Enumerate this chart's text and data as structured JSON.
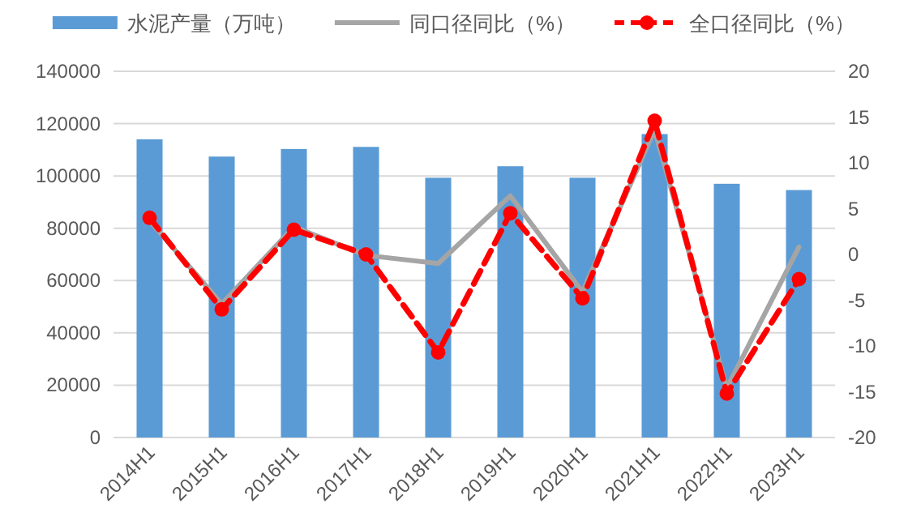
{
  "chart_data": {
    "type": "bar",
    "categories": [
      "2014H1",
      "2015H1",
      "2016H1",
      "2017H1",
      "2018H1",
      "2019H1",
      "2020H1",
      "2021H1",
      "2022H1",
      "2023H1"
    ],
    "series": [
      {
        "name": "水泥产量（万吨）",
        "color": "#5b9bd5",
        "values": [
          114000,
          107400,
          110300,
          111100,
          99300,
          103700,
          99300,
          116000,
          97000,
          94600
        ]
      },
      {
        "name": "同口径同比（%）",
        "type": "line",
        "axis": "y2",
        "color": "#a5a5a5",
        "line_style": "solid",
        "marker": "none",
        "values": [
          3.7,
          -5.4,
          3.0,
          -0.1,
          -1.0,
          6.4,
          -4.1,
          13.6,
          -14.6,
          0.8
        ]
      },
      {
        "name": "全口径同比（%）",
        "type": "line",
        "axis": "y2",
        "color": "#ff0000",
        "line_style": "dashed",
        "marker": "circle",
        "values": [
          4.0,
          -6.0,
          2.7,
          0.0,
          -10.7,
          4.5,
          -4.8,
          14.6,
          -15.2,
          -2.7
        ]
      }
    ],
    "ylim": [
      0,
      140000
    ],
    "yticks": [
      0,
      20000,
      40000,
      60000,
      80000,
      100000,
      120000,
      140000
    ],
    "y2lim": [
      -20,
      20
    ],
    "y2ticks": [
      -20,
      -15,
      -10,
      -5,
      0,
      5,
      10,
      15,
      20
    ],
    "grid": "y",
    "legend": "top"
  }
}
